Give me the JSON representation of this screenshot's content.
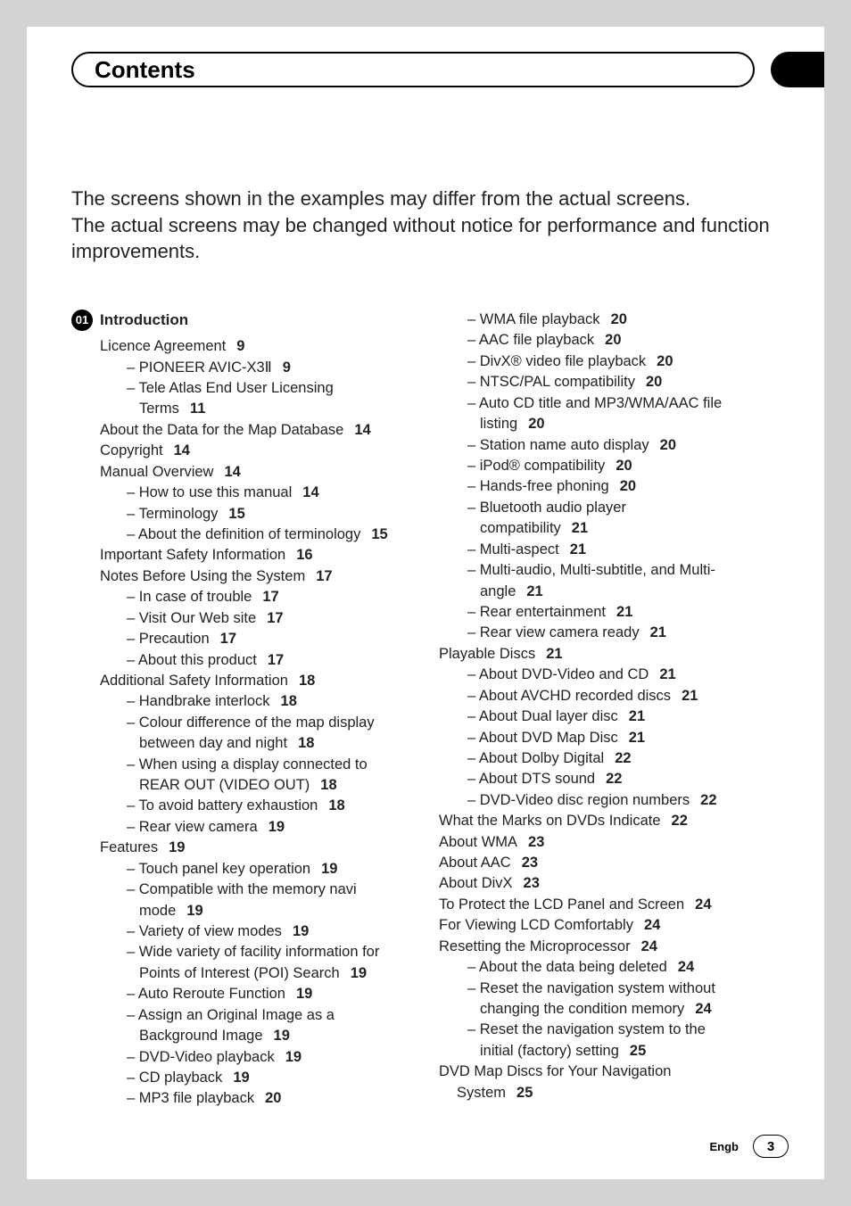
{
  "header": {
    "title": "Contents"
  },
  "intro": {
    "line1": "The screens shown in the examples may differ from the actual screens.",
    "line2": "The actual screens may be changed without notice for performance and function improvements."
  },
  "chapter": {
    "num": "01",
    "title": "Introduction"
  },
  "left": [
    {
      "lvl": 1,
      "t": "Licence Agreement",
      "p": "9"
    },
    {
      "lvl": 2,
      "t": "– PIONEER AVIC-X3Ⅱ",
      "p": "9"
    },
    {
      "lvl": 2,
      "t": "– Tele Atlas End User Licensing"
    },
    {
      "lvl": 3,
      "t": "Terms",
      "p": "11"
    },
    {
      "lvl": 1,
      "t": "About the Data for the Map Database",
      "p": "14"
    },
    {
      "lvl": 1,
      "t": "Copyright",
      "p": "14"
    },
    {
      "lvl": 1,
      "t": "Manual Overview",
      "p": "14"
    },
    {
      "lvl": 2,
      "t": "– How to use this manual",
      "p": "14"
    },
    {
      "lvl": 2,
      "t": "– Terminology",
      "p": "15"
    },
    {
      "lvl": 2,
      "t": "– About the definition of terminology",
      "p": "15"
    },
    {
      "lvl": 1,
      "t": "Important Safety Information",
      "p": "16"
    },
    {
      "lvl": 1,
      "t": "Notes Before Using the System",
      "p": "17"
    },
    {
      "lvl": 2,
      "t": "– In case of trouble",
      "p": "17"
    },
    {
      "lvl": 2,
      "t": "– Visit Our Web site",
      "p": "17"
    },
    {
      "lvl": 2,
      "t": "– Precaution",
      "p": "17"
    },
    {
      "lvl": 2,
      "t": "– About this product",
      "p": "17"
    },
    {
      "lvl": 1,
      "t": "Additional Safety Information",
      "p": "18"
    },
    {
      "lvl": 2,
      "t": "– Handbrake interlock",
      "p": "18"
    },
    {
      "lvl": 2,
      "t": "– Colour difference of the map display"
    },
    {
      "lvl": 3,
      "t": "between day and night",
      "p": "18"
    },
    {
      "lvl": 2,
      "t": "– When using a display connected to"
    },
    {
      "lvl": 3,
      "t": "REAR OUT (VIDEO OUT)",
      "p": "18"
    },
    {
      "lvl": 2,
      "t": "– To avoid battery exhaustion",
      "p": "18"
    },
    {
      "lvl": 2,
      "t": "– Rear view camera",
      "p": "19"
    },
    {
      "lvl": 1,
      "t": "Features",
      "p": "19"
    },
    {
      "lvl": 2,
      "t": "– Touch panel key operation",
      "p": "19"
    },
    {
      "lvl": 2,
      "t": "– Compatible with the memory navi"
    },
    {
      "lvl": 3,
      "t": "mode",
      "p": "19"
    },
    {
      "lvl": 2,
      "t": "– Variety of view modes",
      "p": "19"
    },
    {
      "lvl": 2,
      "t": "– Wide variety of facility information for"
    },
    {
      "lvl": 3,
      "t": "Points of Interest (POI) Search",
      "p": "19"
    },
    {
      "lvl": 2,
      "t": "– Auto Reroute Function",
      "p": "19"
    },
    {
      "lvl": 2,
      "t": "– Assign an Original Image as a"
    },
    {
      "lvl": 3,
      "t": "Background Image",
      "p": "19"
    },
    {
      "lvl": 2,
      "t": "– DVD-Video playback",
      "p": "19"
    },
    {
      "lvl": 2,
      "t": "– CD playback",
      "p": "19"
    },
    {
      "lvl": 2,
      "t": "– MP3 file playback",
      "p": "20"
    }
  ],
  "right": [
    {
      "lvl": 2,
      "t": "– WMA file playback",
      "p": "20"
    },
    {
      "lvl": 2,
      "t": "– AAC file playback",
      "p": "20"
    },
    {
      "lvl": 2,
      "t": "– DivX® video file playback",
      "p": "20"
    },
    {
      "lvl": 2,
      "t": "– NTSC/PAL compatibility",
      "p": "20"
    },
    {
      "lvl": 2,
      "t": "– Auto CD title and MP3/WMA/AAC file"
    },
    {
      "lvl": 3,
      "t": "listing",
      "p": "20"
    },
    {
      "lvl": 2,
      "t": "– Station name auto display",
      "p": "20"
    },
    {
      "lvl": 2,
      "t": "– iPod® compatibility",
      "p": "20"
    },
    {
      "lvl": 2,
      "t": "– Hands-free phoning",
      "p": "20"
    },
    {
      "lvl": 2,
      "t": "– Bluetooth audio player"
    },
    {
      "lvl": 3,
      "t": "compatibility",
      "p": "21"
    },
    {
      "lvl": 2,
      "t": "– Multi-aspect",
      "p": "21"
    },
    {
      "lvl": 2,
      "t": "– Multi-audio, Multi-subtitle, and Multi-"
    },
    {
      "lvl": 3,
      "t": "angle",
      "p": "21"
    },
    {
      "lvl": 2,
      "t": "– Rear entertainment",
      "p": "21"
    },
    {
      "lvl": 2,
      "t": "– Rear view camera ready",
      "p": "21"
    },
    {
      "lvl": 1,
      "t": "Playable Discs",
      "p": "21"
    },
    {
      "lvl": 2,
      "t": "– About DVD-Video and CD",
      "p": "21"
    },
    {
      "lvl": 2,
      "t": "– About AVCHD recorded discs",
      "p": "21"
    },
    {
      "lvl": 2,
      "t": "– About Dual layer disc",
      "p": "21"
    },
    {
      "lvl": 2,
      "t": "– About DVD Map Disc",
      "p": "21"
    },
    {
      "lvl": 2,
      "t": "– About Dolby Digital",
      "p": "22"
    },
    {
      "lvl": 2,
      "t": "– About DTS sound",
      "p": "22"
    },
    {
      "lvl": 2,
      "t": "– DVD-Video disc region numbers",
      "p": "22"
    },
    {
      "lvl": 1,
      "t": "What the Marks on DVDs Indicate",
      "p": "22"
    },
    {
      "lvl": 1,
      "t": "About WMA",
      "p": "23"
    },
    {
      "lvl": 1,
      "t": "About AAC",
      "p": "23"
    },
    {
      "lvl": 1,
      "t": "About DivX",
      "p": "23"
    },
    {
      "lvl": 1,
      "t": "To Protect the LCD Panel and Screen",
      "p": "24"
    },
    {
      "lvl": 1,
      "t": "For Viewing LCD Comfortably",
      "p": "24"
    },
    {
      "lvl": 1,
      "t": "Resetting the Microprocessor",
      "p": "24"
    },
    {
      "lvl": 2,
      "t": "– About the data being deleted",
      "p": "24"
    },
    {
      "lvl": 2,
      "t": "– Reset the navigation system without"
    },
    {
      "lvl": 3,
      "t": "changing the condition memory",
      "p": "24"
    },
    {
      "lvl": 2,
      "t": "– Reset the navigation system to the"
    },
    {
      "lvl": 3,
      "t": "initial (factory) setting",
      "p": "25"
    },
    {
      "lvl": 1,
      "t": "DVD Map Discs for Your Navigation"
    },
    {
      "lvl": "c1",
      "t": "System",
      "p": "25"
    }
  ],
  "footer": {
    "lang": "Engb",
    "page": "3"
  }
}
